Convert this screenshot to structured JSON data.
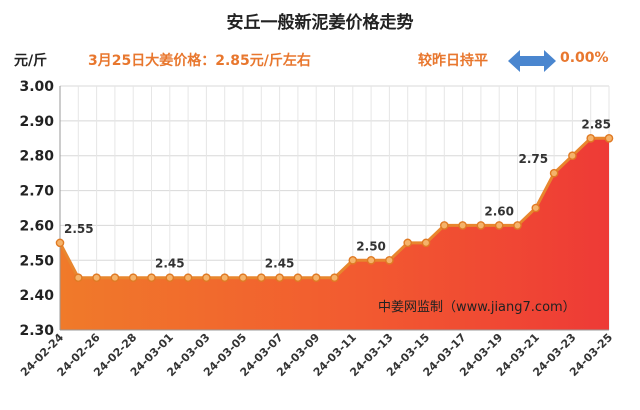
{
  "header": {
    "title": "安丘一般新泥姜价格走势",
    "unit": "元/斤",
    "price_note": "3月25日大姜价格：2.85元/斤左右",
    "compare_label": "较昨日持平",
    "change_pct": "0.00%"
  },
  "colors": {
    "accent_orange": "#e8772e",
    "line": "#e8862e",
    "arrow_blue": "#4a86cf"
  },
  "chart_data": {
    "type": "area",
    "title": "安丘一般新泥姜价格走势",
    "ylabel": "元/斤",
    "ylim": [
      2.3,
      3.0
    ],
    "yticks": [
      2.3,
      2.4,
      2.5,
      2.6,
      2.7,
      2.8,
      2.9,
      3.0
    ],
    "x": [
      "24-02-24",
      "24-02-25",
      "24-02-26",
      "24-02-27",
      "24-02-28",
      "24-02-29",
      "24-03-01",
      "24-03-02",
      "24-03-03",
      "24-03-04",
      "24-03-05",
      "24-03-06",
      "24-03-07",
      "24-03-08",
      "24-03-09",
      "24-03-10",
      "24-03-11",
      "24-03-12",
      "24-03-13",
      "24-03-14",
      "24-03-15",
      "24-03-16",
      "24-03-17",
      "24-03-18",
      "24-03-19",
      "24-03-20",
      "24-03-21",
      "24-03-22",
      "24-03-23",
      "24-03-24",
      "24-03-25"
    ],
    "x_tick_labels": [
      "24-02-24",
      "24-02-26",
      "24-02-28",
      "24-03-01",
      "24-03-03",
      "24-03-05",
      "24-03-07",
      "24-03-09",
      "24-03-11",
      "24-03-13",
      "24-03-15",
      "24-03-17",
      "24-03-19",
      "24-03-21",
      "24-03-23",
      "24-03-25"
    ],
    "values": [
      2.55,
      2.45,
      2.45,
      2.45,
      2.45,
      2.45,
      2.45,
      2.45,
      2.45,
      2.45,
      2.45,
      2.45,
      2.45,
      2.45,
      2.45,
      2.45,
      2.5,
      2.5,
      2.5,
      2.55,
      2.55,
      2.6,
      2.6,
      2.6,
      2.6,
      2.6,
      2.65,
      2.75,
      2.8,
      2.85,
      2.85
    ],
    "data_labels": [
      {
        "date": "24-02-24",
        "text": "2.55"
      },
      {
        "date": "24-03-01",
        "text": "2.45"
      },
      {
        "date": "24-03-07",
        "text": "2.45"
      },
      {
        "date": "24-03-12",
        "text": "2.50"
      },
      {
        "date": "24-03-19",
        "text": "2.60"
      },
      {
        "date": "24-03-22",
        "text": "2.75"
      },
      {
        "date": "24-03-25",
        "text": "2.85"
      }
    ],
    "annotation": "中姜网监制（www.jiang7.com）",
    "grid": true
  }
}
